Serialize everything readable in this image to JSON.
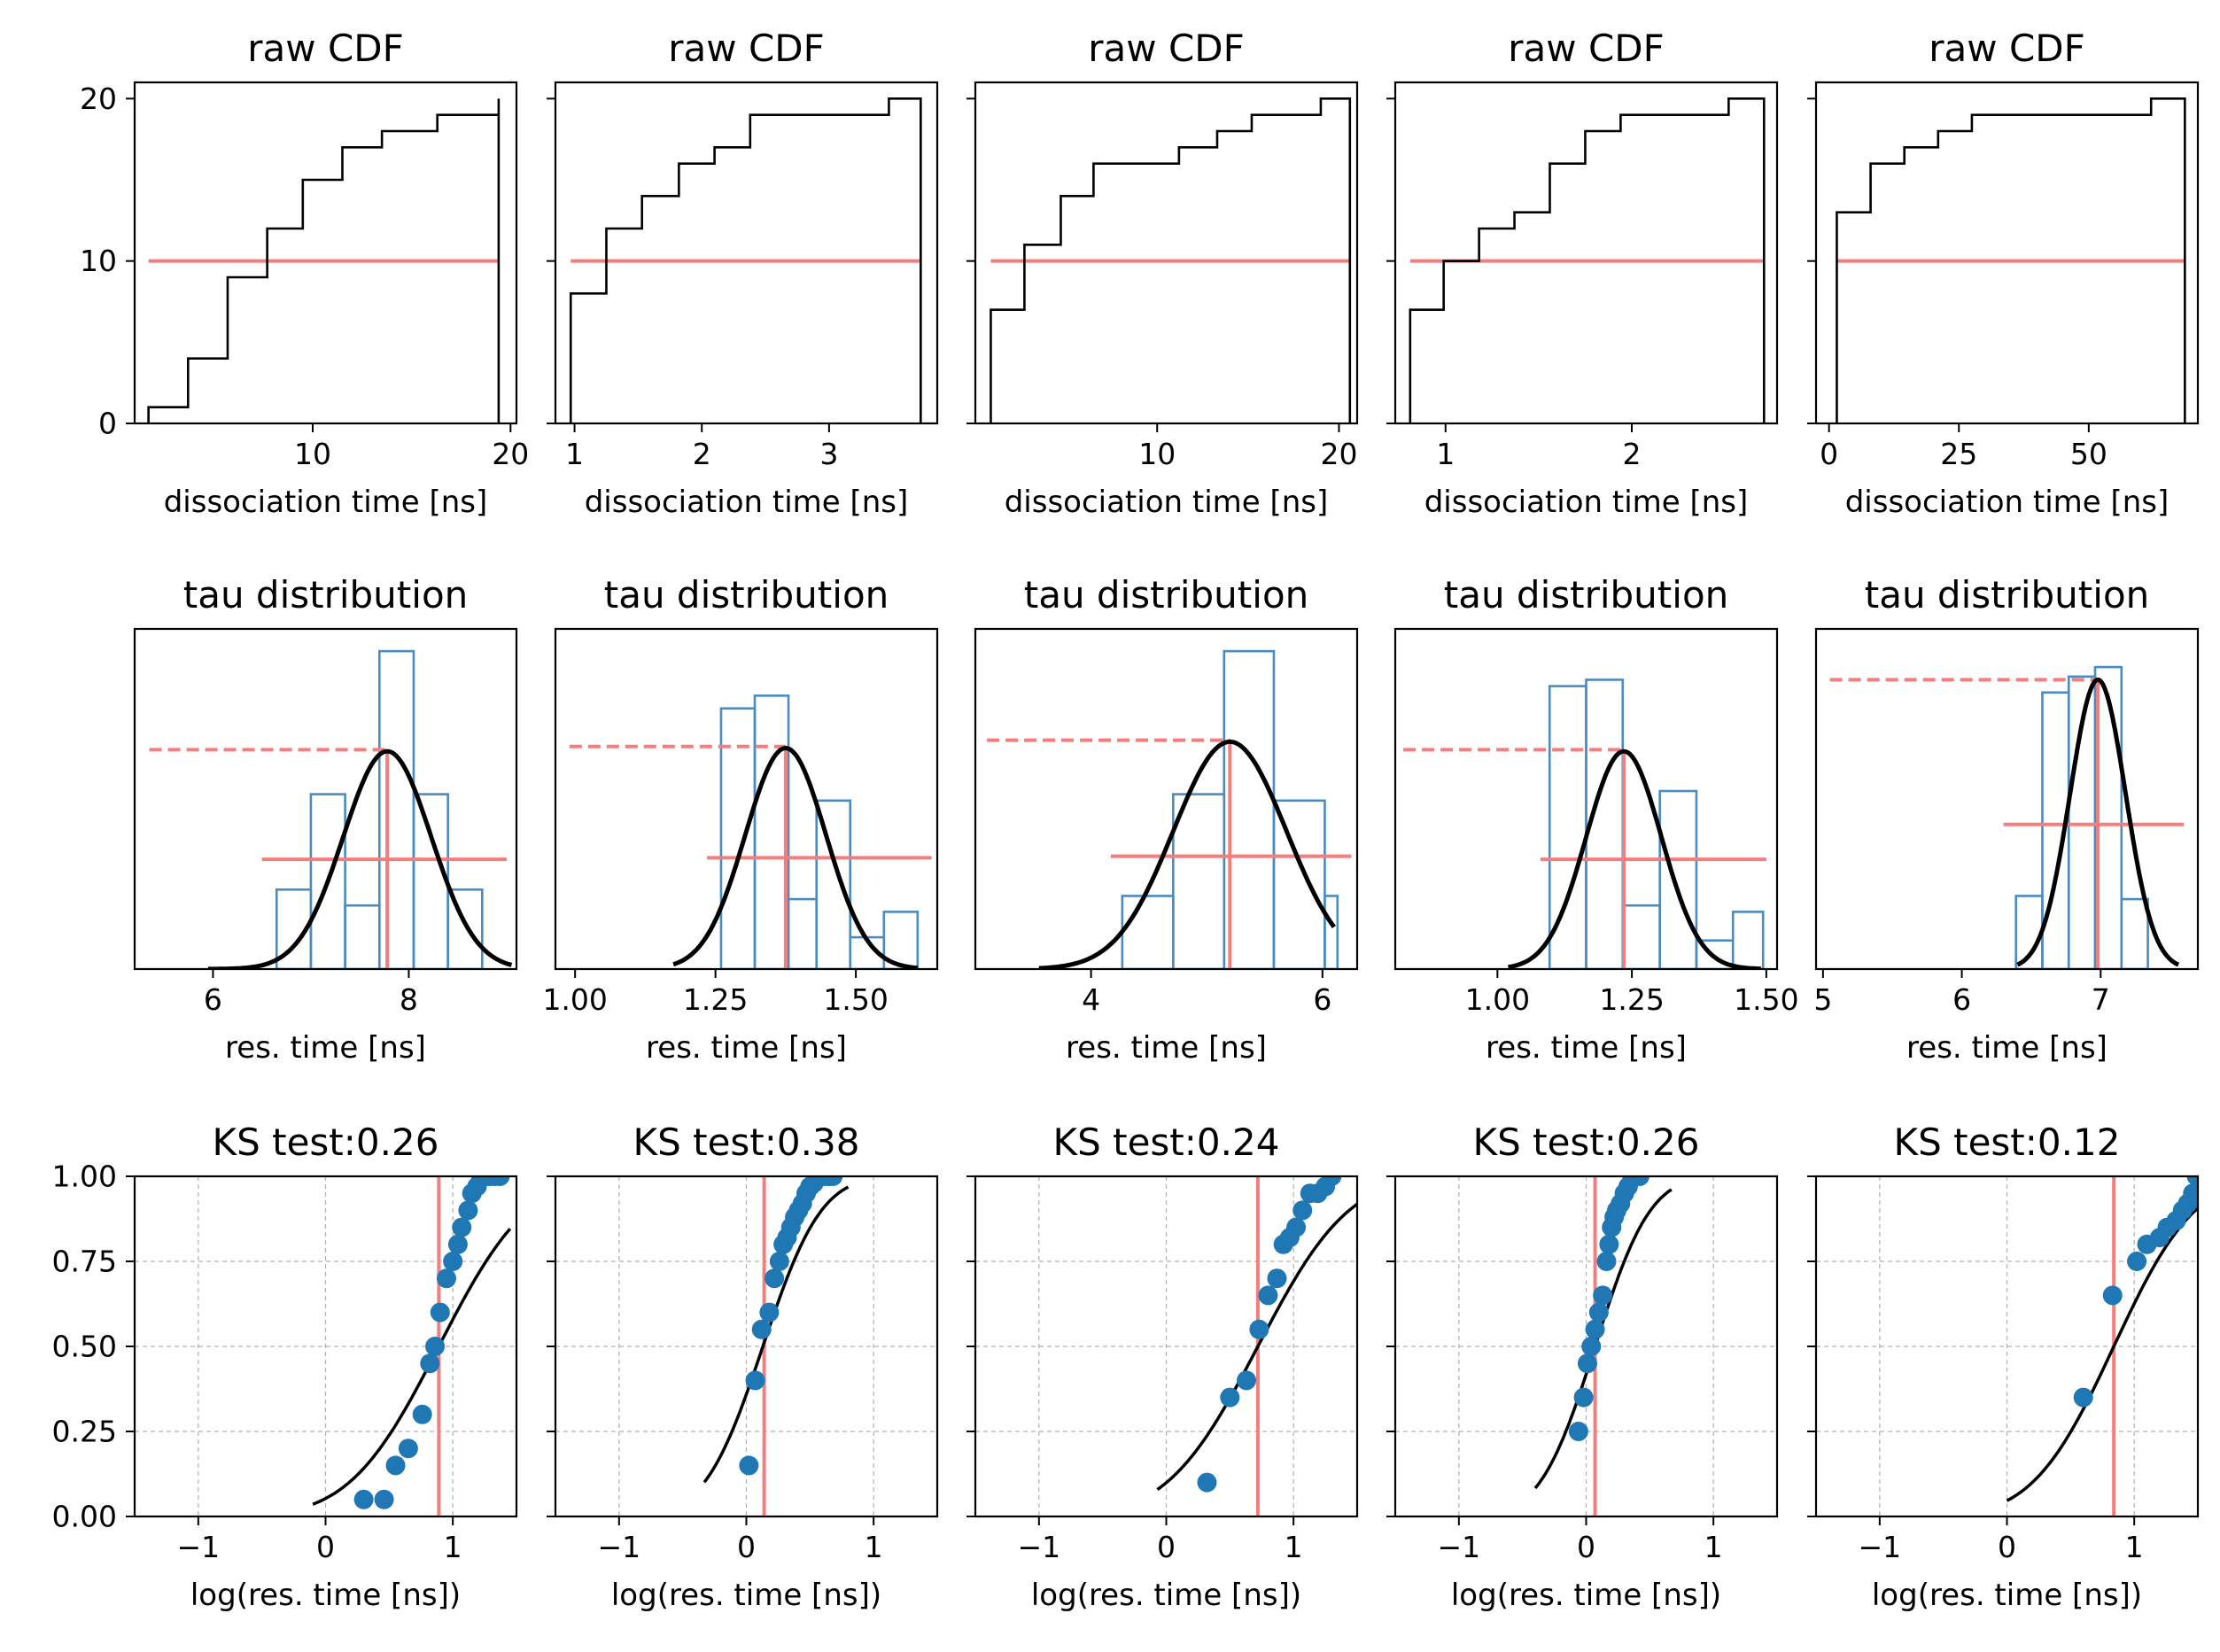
{
  "chart_data": [
    {
      "row": 0,
      "col": 0,
      "type": "step",
      "title": "raw CDF",
      "xlabel": "dissociation time [ns]",
      "ylabel": "",
      "xlim": [
        1.0,
        20.3
      ],
      "ylim": [
        0,
        21
      ],
      "xticks": [
        10,
        20
      ],
      "yticks": [
        0,
        10,
        20
      ],
      "cdf_times": [
        1.7,
        3.7,
        5.7,
        7.7,
        9.5,
        11.5,
        13.5,
        16.3,
        18.2,
        19.4
      ],
      "cdf_counts": [
        1,
        4,
        9,
        12,
        15,
        17,
        18,
        19,
        19,
        20
      ],
      "median": 10
    },
    {
      "row": 0,
      "col": 1,
      "type": "step",
      "title": "raw CDF",
      "xlabel": "dissociation time [ns]",
      "ylabel": "",
      "xlim": [
        0.85,
        3.85
      ],
      "ylim": [
        0,
        21
      ],
      "xticks": [
        1,
        2,
        3
      ],
      "yticks": [
        0,
        10,
        20
      ],
      "cdf_times": [
        0.97,
        1.25,
        1.53,
        1.82,
        2.1,
        2.38,
        2.66,
        2.94,
        3.22,
        3.47,
        3.72
      ],
      "cdf_counts": [
        8,
        12,
        14,
        16,
        17,
        19,
        19,
        19,
        19,
        20,
        20
      ],
      "median": 10
    },
    {
      "row": 0,
      "col": 2,
      "type": "step",
      "title": "raw CDF",
      "xlabel": "dissociation time [ns]",
      "ylabel": "",
      "xlim": [
        0.0,
        21.0
      ],
      "ylim": [
        0,
        21
      ],
      "xticks": [
        10,
        20
      ],
      "yticks": [
        0,
        10,
        20
      ],
      "cdf_times": [
        0.85,
        2.7,
        4.7,
        6.5,
        11.2,
        13.3,
        15.2,
        17.3,
        19.0,
        20.6
      ],
      "cdf_counts": [
        7,
        11,
        14,
        16,
        17,
        18,
        19,
        19,
        20,
        20
      ],
      "median": 10
    },
    {
      "row": 0,
      "col": 3,
      "type": "step",
      "title": "raw CDF",
      "xlabel": "dissociation time [ns]",
      "ylabel": "",
      "xlim": [
        0.73,
        2.78
      ],
      "ylim": [
        0,
        21
      ],
      "xticks": [
        1,
        2
      ],
      "yticks": [
        0,
        10,
        20
      ],
      "cdf_times": [
        0.81,
        0.99,
        1.18,
        1.37,
        1.56,
        1.75,
        1.94,
        2.13,
        2.32,
        2.52,
        2.71
      ],
      "cdf_counts": [
        7,
        10,
        12,
        13,
        16,
        18,
        19,
        19,
        19,
        20,
        20
      ],
      "median": 10
    },
    {
      "row": 0,
      "col": 4,
      "type": "step",
      "title": "raw CDF",
      "xlabel": "dissociation time [ns]",
      "ylabel": "",
      "xlim": [
        -2.5,
        71.0
      ],
      "ylim": [
        0,
        21
      ],
      "xticks": [
        0,
        25,
        50
      ],
      "yticks": [
        0,
        10,
        20
      ],
      "cdf_times": [
        1.5,
        8.0,
        14.5,
        21.0,
        27.5,
        62.0,
        68.5
      ],
      "cdf_counts": [
        13,
        16,
        17,
        18,
        19,
        20,
        20
      ],
      "median": 10
    },
    {
      "row": 1,
      "col": 0,
      "type": "histogram",
      "title": "tau distribution",
      "xlabel": "res. time [ns]",
      "ylabel": "",
      "xlim": [
        5.2,
        9.1
      ],
      "ylim": [
        0,
        1.07
      ],
      "xticks": [
        6,
        8
      ],
      "bins": [
        6.65,
        7.0,
        7.35,
        7.7,
        8.05,
        8.4,
        8.75,
        9.05
      ],
      "heights": [
        0.25,
        0.55,
        0.2,
        1.0,
        0.55,
        0.25,
        0.0
      ],
      "gauss_mu": 7.78,
      "gauss_sigma": 0.45,
      "gauss_peak": 0.685,
      "fit_range": [
        5.95,
        9.05
      ],
      "dashed_level": 0.69,
      "dashed_range": [
        5.35,
        7.78
      ],
      "center": 7.78,
      "error_range": [
        6.5,
        9.0
      ],
      "error_level": 0.345
    },
    {
      "row": 1,
      "col": 1,
      "type": "histogram",
      "title": "tau distribution",
      "xlabel": "res. time [ns]",
      "ylabel": "",
      "xlim": [
        0.965,
        1.645
      ],
      "ylim": [
        0,
        1.07
      ],
      "xticks": [
        1.0,
        1.25,
        1.5
      ],
      "bins": [
        1.26,
        1.32,
        1.38,
        1.43,
        1.49,
        1.55,
        1.61
      ],
      "heights": [
        0.82,
        0.86,
        0.22,
        0.53,
        0.1,
        0.18
      ],
      "gauss_mu": 1.375,
      "gauss_sigma": 0.072,
      "gauss_peak": 0.695,
      "fit_range": [
        1.175,
        1.61
      ],
      "dashed_level": 0.7,
      "dashed_range": [
        0.99,
        1.375
      ],
      "center": 1.375,
      "error_range": [
        1.235,
        1.635
      ],
      "error_level": 0.35
    },
    {
      "row": 1,
      "col": 2,
      "type": "histogram",
      "title": "tau distribution",
      "xlabel": "res. time [ns]",
      "ylabel": "",
      "xlim": [
        3.0,
        6.3
      ],
      "ylim": [
        0,
        1.07
      ],
      "xticks": [
        4,
        6
      ],
      "bins": [
        4.27,
        4.71,
        5.15,
        5.58,
        6.02,
        6.13
      ],
      "heights": [
        0.23,
        0.55,
        1.0,
        0.53,
        0.23
      ],
      "gauss_mu": 5.2,
      "gauss_sigma": 0.49,
      "gauss_peak": 0.715,
      "fit_range": [
        3.55,
        6.1
      ],
      "dashed_level": 0.72,
      "dashed_range": [
        3.1,
        5.2
      ],
      "center": 5.2,
      "error_range": [
        4.17,
        6.25
      ],
      "error_level": 0.355
    },
    {
      "row": 1,
      "col": 3,
      "type": "histogram",
      "title": "tau distribution",
      "xlabel": "res. time [ns]",
      "ylabel": "",
      "xlim": [
        0.81,
        1.52
      ],
      "ylim": [
        0,
        1.07
      ],
      "xticks": [
        1.0,
        1.25,
        1.5
      ],
      "bins": [
        1.097,
        1.165,
        1.233,
        1.302,
        1.37,
        1.438,
        1.494
      ],
      "heights": [
        0.89,
        0.91,
        0.2,
        0.56,
        0.09,
        0.18
      ],
      "gauss_mu": 1.235,
      "gauss_sigma": 0.07,
      "gauss_peak": 0.685,
      "fit_range": [
        1.02,
        1.49
      ],
      "dashed_level": 0.69,
      "dashed_range": [
        0.825,
        1.235
      ],
      "center": 1.235,
      "error_range": [
        1.08,
        1.5
      ],
      "error_level": 0.345
    },
    {
      "row": 1,
      "col": 4,
      "type": "histogram",
      "title": "tau distribution",
      "xlabel": "res. time [ns]",
      "ylabel": "",
      "xlim": [
        4.95,
        7.7
      ],
      "ylim": [
        0,
        1.07
      ],
      "xticks": [
        5,
        6,
        7
      ],
      "bins": [
        6.39,
        6.58,
        6.77,
        6.96,
        7.15,
        7.34,
        7.53
      ],
      "heights": [
        0.23,
        0.87,
        0.92,
        0.95,
        0.22,
        0.0
      ],
      "gauss_mu": 6.98,
      "gauss_sigma": 0.2,
      "gauss_peak": 0.91,
      "fit_range": [
        6.4,
        7.56
      ],
      "dashed_level": 0.91,
      "dashed_range": [
        5.05,
        6.98
      ],
      "center": 6.98,
      "error_range": [
        6.3,
        7.6
      ],
      "error_level": 0.455
    },
    {
      "row": 2,
      "col": 0,
      "type": "scatter",
      "title": "KS test:0.26",
      "xlabel": "log(res. time [ns])",
      "ylabel": "",
      "xlim": [
        -1.5,
        1.5
      ],
      "ylim": [
        0,
        1
      ],
      "xticks": [
        -1,
        0,
        1
      ],
      "yticks": [
        0.0,
        0.25,
        0.5,
        0.75,
        1.0
      ],
      "grid": true,
      "x": [
        0.3,
        0.46,
        0.55,
        0.65,
        0.76,
        0.82,
        0.86,
        0.9,
        0.95,
        1.0,
        1.04,
        1.07,
        1.12,
        1.15,
        1.19,
        1.22,
        1.26,
        1.29,
        1.33,
        1.37
      ],
      "y": [
        0.05,
        0.05,
        0.15,
        0.2,
        0.3,
        0.45,
        0.5,
        0.6,
        0.7,
        0.75,
        0.8,
        0.85,
        0.9,
        0.95,
        0.97,
        1.0,
        1.0,
        1.0,
        1.0,
        1.0
      ],
      "cdf_mu": 0.89,
      "cdf_sigma": 0.55,
      "cdf_range": [
        -0.1,
        1.45
      ],
      "vline": 0.89
    },
    {
      "row": 2,
      "col": 1,
      "type": "scatter",
      "title": "KS test:0.38",
      "xlabel": "log(res. time [ns])",
      "ylabel": "",
      "xlim": [
        -1.5,
        1.5
      ],
      "ylim": [
        0,
        1
      ],
      "xticks": [
        -1,
        0,
        1
      ],
      "yticks": [
        0.0,
        0.25,
        0.5,
        0.75,
        1.0
      ],
      "grid": true,
      "x": [
        0.02,
        0.07,
        0.12,
        0.18,
        0.22,
        0.26,
        0.29,
        0.32,
        0.35,
        0.38,
        0.41,
        0.44,
        0.47,
        0.5,
        0.53,
        0.56,
        0.59,
        0.62,
        0.65,
        0.68
      ],
      "y": [
        0.15,
        0.4,
        0.55,
        0.6,
        0.7,
        0.75,
        0.8,
        0.82,
        0.85,
        0.88,
        0.9,
        0.92,
        0.95,
        0.97,
        0.98,
        1.0,
        1.0,
        1.0,
        1.0,
        1.0
      ],
      "cdf_mu": 0.13,
      "cdf_sigma": 0.36,
      "cdf_range": [
        -0.33,
        0.8
      ],
      "vline": 0.14
    },
    {
      "row": 2,
      "col": 2,
      "type": "scatter",
      "title": "KS test:0.24",
      "xlabel": "log(res. time [ns])",
      "ylabel": "",
      "xlim": [
        -1.5,
        1.5
      ],
      "ylim": [
        0,
        1
      ],
      "xticks": [
        -1,
        0,
        1
      ],
      "yticks": [
        0.0,
        0.25,
        0.5,
        0.75,
        1.0
      ],
      "grid": true,
      "x": [
        0.32,
        0.5,
        0.63,
        0.73,
        0.8,
        0.87,
        0.92,
        0.97,
        1.02,
        1.07,
        1.13,
        1.19,
        1.25,
        1.3
      ],
      "y": [
        0.1,
        0.35,
        0.4,
        0.55,
        0.65,
        0.7,
        0.8,
        0.82,
        0.85,
        0.9,
        0.95,
        0.95,
        0.97,
        1.0
      ],
      "cdf_mu": 0.72,
      "cdf_sigma": 0.56,
      "cdf_range": [
        -0.07,
        1.5
      ],
      "vline": 0.72
    },
    {
      "row": 2,
      "col": 3,
      "type": "scatter",
      "title": "KS test:0.26",
      "xlabel": "log(res. time [ns])",
      "ylabel": "",
      "xlim": [
        -1.5,
        1.5
      ],
      "ylim": [
        0,
        1
      ],
      "xticks": [
        -1,
        0,
        1
      ],
      "yticks": [
        0.0,
        0.25,
        0.5,
        0.75,
        1.0
      ],
      "grid": true,
      "x": [
        -0.06,
        -0.02,
        0.01,
        0.04,
        0.07,
        0.1,
        0.13,
        0.16,
        0.18,
        0.2,
        0.22,
        0.24,
        0.27,
        0.3,
        0.33,
        0.36,
        0.39,
        0.42
      ],
      "y": [
        0.25,
        0.35,
        0.45,
        0.5,
        0.55,
        0.6,
        0.65,
        0.75,
        0.8,
        0.85,
        0.88,
        0.9,
        0.92,
        0.95,
        0.97,
        1.0,
        1.0,
        1.0
      ],
      "cdf_mu": 0.07,
      "cdf_sigma": 0.34,
      "cdf_range": [
        -0.4,
        0.67
      ],
      "vline": 0.07
    },
    {
      "row": 2,
      "col": 4,
      "type": "scatter",
      "title": "KS test:0.12",
      "xlabel": "log(res. time [ns])",
      "ylabel": "",
      "xlim": [
        -1.5,
        1.5
      ],
      "ylim": [
        0,
        1
      ],
      "xticks": [
        -1,
        0,
        1
      ],
      "yticks": [
        0.0,
        0.25,
        0.5,
        0.75,
        1.0
      ],
      "grid": true,
      "x": [
        0.6,
        0.83,
        1.02,
        1.1,
        1.2,
        1.26,
        1.33,
        1.38,
        1.42,
        1.46,
        1.49
      ],
      "y": [
        0.35,
        0.65,
        0.75,
        0.8,
        0.82,
        0.85,
        0.87,
        0.9,
        0.92,
        0.95,
        1.0
      ],
      "cdf_mu": 0.84,
      "cdf_sigma": 0.5,
      "cdf_range": [
        0.0,
        1.5
      ],
      "vline": 0.84
    }
  ]
}
